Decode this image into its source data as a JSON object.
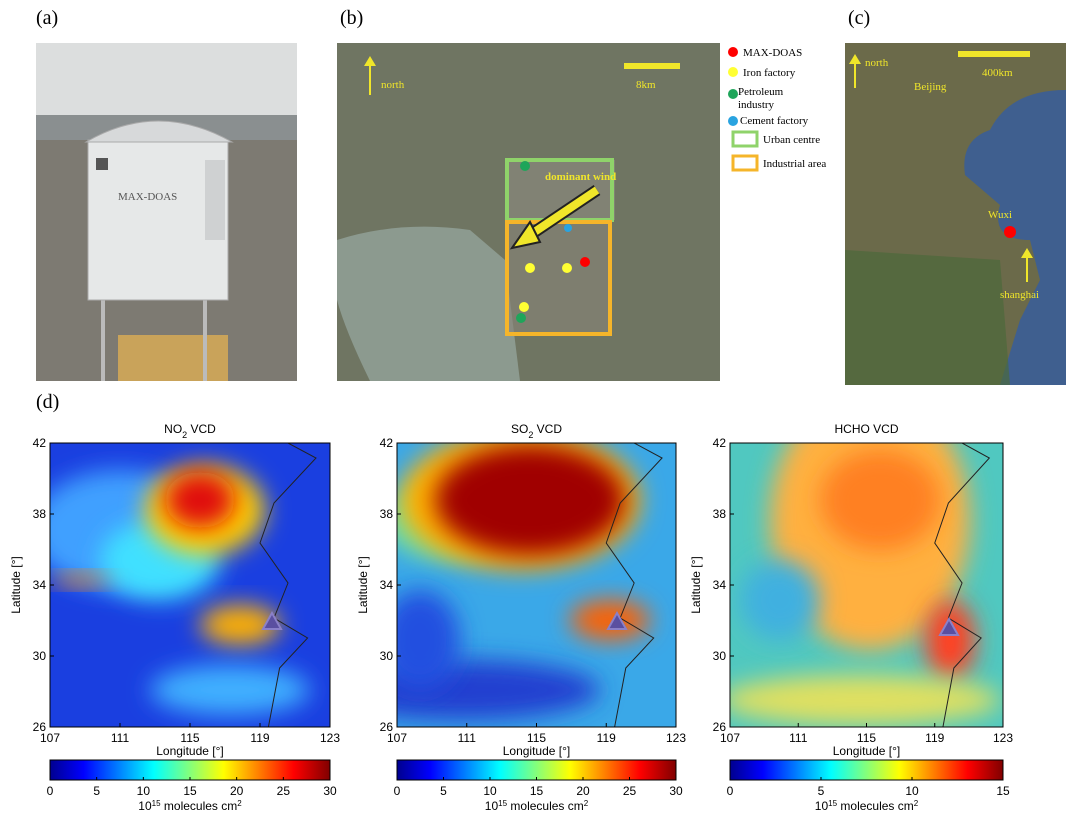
{
  "panels": {
    "a": {
      "label": "(a)",
      "device_text": "MAX-DOAS"
    },
    "b": {
      "label": "(b)",
      "north": "north",
      "scale": "8km",
      "wind": "dominant wind",
      "legend": [
        "MAX-DOAS",
        "Iron factory",
        "Petroleum industry",
        "Cement factory",
        "Urban centre",
        "Industrial area"
      ]
    },
    "c": {
      "label": "(c)",
      "north": "north",
      "scale": "400km",
      "beijing": "Beijing",
      "wuxi": "Wuxi",
      "shanghai": "shanghai"
    },
    "d": {
      "label": "(d)"
    }
  },
  "maps": [
    {
      "title": [
        "NO",
        "2",
        " VCD"
      ],
      "ylabel": "Latitude [°]",
      "xlabel": "Longitude [°]",
      "yticks": [
        42,
        38,
        34,
        30,
        26
      ],
      "xticks": [
        107,
        111,
        115,
        119,
        123
      ],
      "cbar_ticks": [
        0,
        5,
        10,
        15,
        20,
        25,
        30
      ],
      "cbar_label": [
        "10",
        "15",
        " molecules cm",
        "2"
      ]
    },
    {
      "title": [
        "SO",
        "2",
        " VCD"
      ],
      "ylabel": "Latitude [°]",
      "xlabel": "Longitude [°]",
      "yticks": [
        42,
        38,
        34,
        30,
        26
      ],
      "xticks": [
        107,
        111,
        115,
        119,
        123
      ],
      "cbar_ticks": [
        0,
        5,
        10,
        15,
        20,
        25,
        30
      ],
      "cbar_label": [
        "10",
        "15",
        " molecules cm",
        "2"
      ]
    },
    {
      "title": [
        "HCHO VCD"
      ],
      "ylabel": "Latitude [°]",
      "xlabel": "Longitude [°]",
      "yticks": [
        42,
        38,
        34,
        30,
        26
      ],
      "xticks": [
        107,
        111,
        115,
        119,
        123
      ],
      "cbar_ticks": [
        0,
        5,
        10,
        15
      ],
      "cbar_label": [
        "10",
        "15",
        " molecules cm",
        "2"
      ]
    }
  ]
}
